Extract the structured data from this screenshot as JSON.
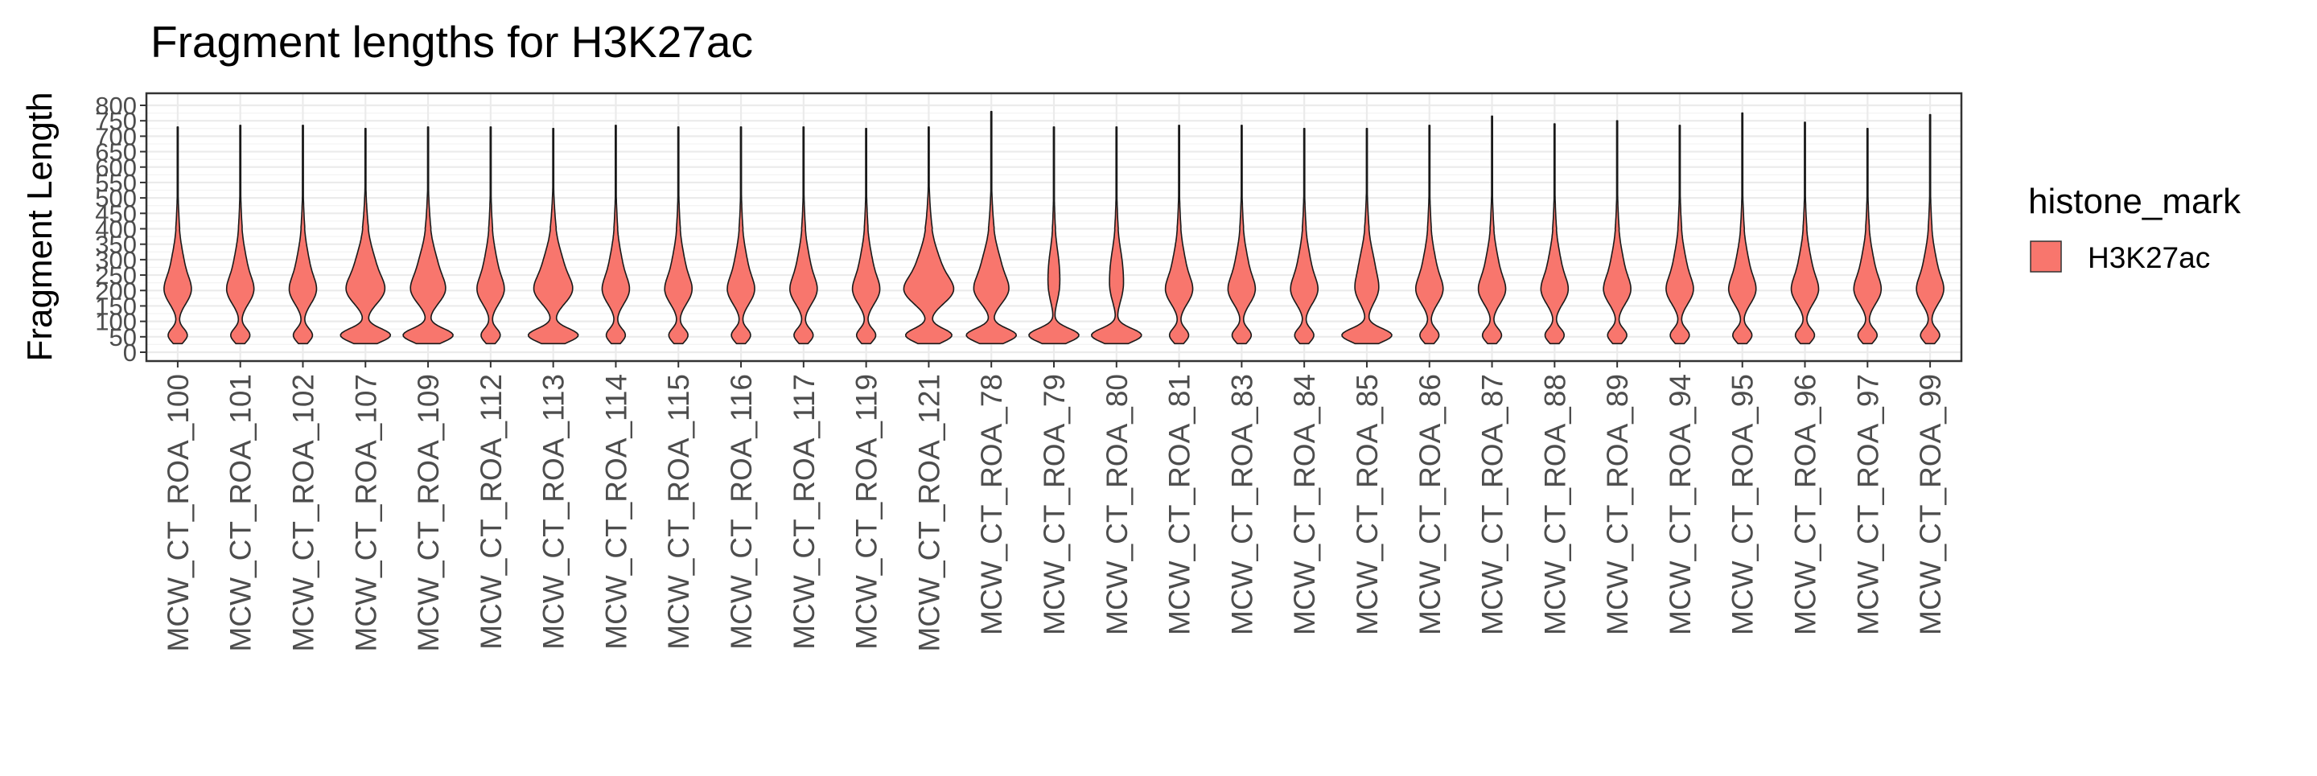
{
  "chart_data": {
    "type": "violin",
    "title": "Fragment lengths for H3K27ac",
    "xlabel": "",
    "ylabel": "Fragment Length",
    "ylim": [
      0,
      800
    ],
    "yticks": [
      0,
      50,
      100,
      150,
      200,
      250,
      300,
      350,
      400,
      450,
      500,
      550,
      600,
      650,
      700,
      750,
      800
    ],
    "grid": true,
    "legend": {
      "title": "histone_mark",
      "position": "right",
      "entries": [
        {
          "label": "H3K27ac",
          "color": "#F8766D"
        }
      ]
    },
    "categories": [
      "MCW_CT_ROA_100",
      "MCW_CT_ROA_101",
      "MCW_CT_ROA_102",
      "MCW_CT_ROA_107",
      "MCW_CT_ROA_109",
      "MCW_CT_ROA_112",
      "MCW_CT_ROA_113",
      "MCW_CT_ROA_114",
      "MCW_CT_ROA_115",
      "MCW_CT_ROA_116",
      "MCW_CT_ROA_117",
      "MCW_CT_ROA_119",
      "MCW_CT_ROA_121",
      "MCW_CT_ROA_78",
      "MCW_CT_ROA_79",
      "MCW_CT_ROA_80",
      "MCW_CT_ROA_81",
      "MCW_CT_ROA_83",
      "MCW_CT_ROA_84",
      "MCW_CT_ROA_85",
      "MCW_CT_ROA_86",
      "MCW_CT_ROA_87",
      "MCW_CT_ROA_88",
      "MCW_CT_ROA_89",
      "MCW_CT_ROA_94",
      "MCW_CT_ROA_95",
      "MCW_CT_ROA_96",
      "MCW_CT_ROA_97",
      "MCW_CT_ROA_99"
    ],
    "series": [
      {
        "name": "H3K27ac",
        "color": "#F8766D",
        "max_length": [
          730,
          735,
          735,
          725,
          730,
          730,
          725,
          735,
          730,
          730,
          730,
          725,
          730,
          780,
          730,
          730,
          735,
          735,
          725,
          725,
          735,
          765,
          740,
          750,
          735,
          775,
          745,
          725,
          770
        ],
        "profile": "bimodal",
        "low_mode": 55,
        "high_mode": 195
      }
    ]
  }
}
